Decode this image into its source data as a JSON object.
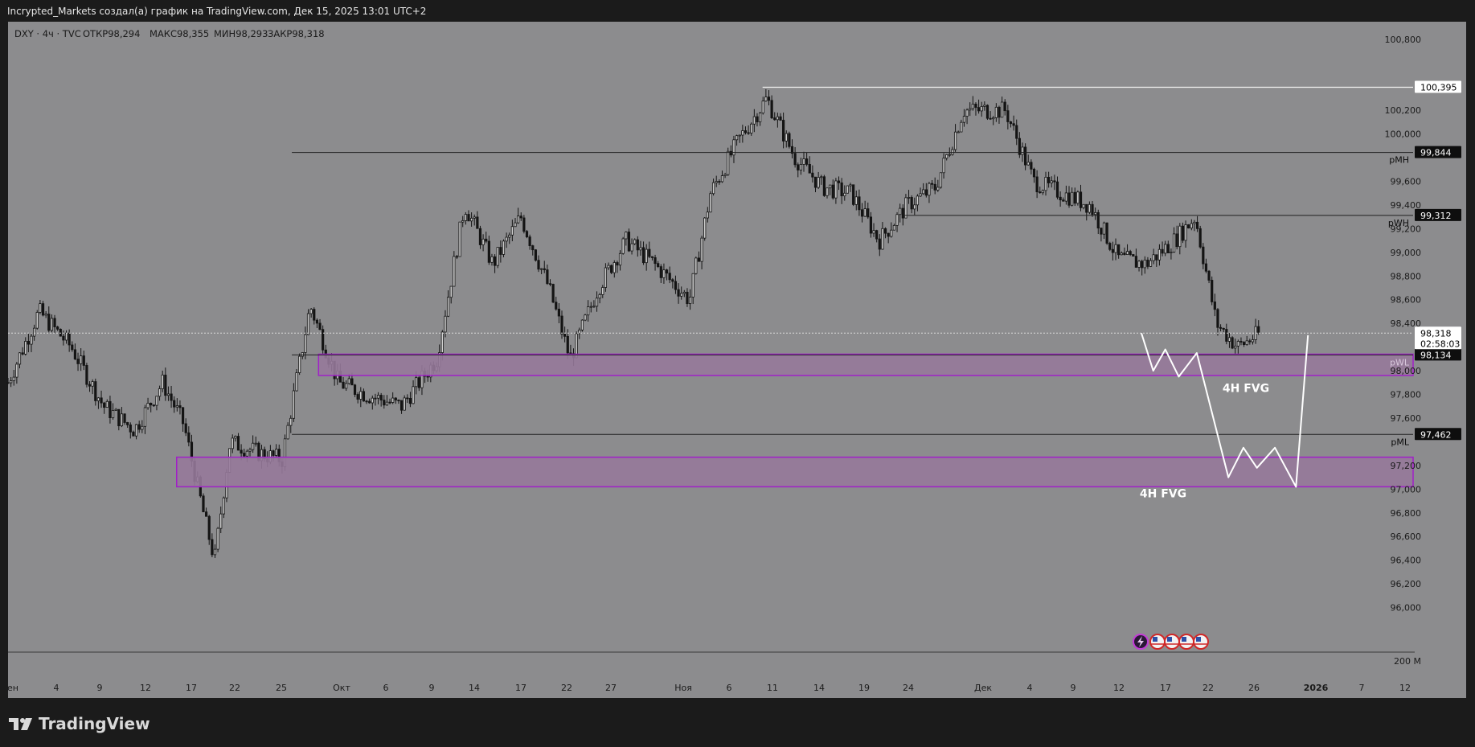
{
  "header": {
    "attribution": "Incrypted_Markets создал(а) график на TradingView.com, Дек 15, 2025 13:01 UTC+2"
  },
  "legend": {
    "symbol": "DXY · 4ч · TVC",
    "open_label": "ОТКР",
    "open": "98,294",
    "high_label": "МАКС",
    "high": "98,355",
    "low_label": "МИН",
    "low": "98,293",
    "close_label": "ЗАКР",
    "close": "98,318"
  },
  "chart_data": {
    "type": "candlestick",
    "ylim": [
      95.8,
      100.86
    ],
    "y_ticks": [
      {
        "value": 100.8,
        "label": "100,800"
      },
      {
        "value": 100.2,
        "label": "100,200"
      },
      {
        "value": 100.0,
        "label": "100,000"
      },
      {
        "value": 99.6,
        "label": "99,600"
      },
      {
        "value": 99.4,
        "label": "99,400"
      },
      {
        "value": 99.2,
        "label": "99,200"
      },
      {
        "value": 99.0,
        "label": "99,000"
      },
      {
        "value": 98.8,
        "label": "98,800"
      },
      {
        "value": 98.6,
        "label": "98,600"
      },
      {
        "value": 98.4,
        "label": "98,400"
      },
      {
        "value": 98.0,
        "label": "98,000"
      },
      {
        "value": 97.8,
        "label": "97,800"
      },
      {
        "value": 97.6,
        "label": "97,600"
      },
      {
        "value": 97.2,
        "label": "97,200"
      },
      {
        "value": 97.0,
        "label": "97,000"
      },
      {
        "value": 96.8,
        "label": "96,800"
      },
      {
        "value": 96.6,
        "label": "96,600"
      },
      {
        "value": 96.4,
        "label": "96,400"
      },
      {
        "value": 96.2,
        "label": "96,200"
      },
      {
        "value": 96.0,
        "label": "96,000"
      }
    ],
    "x_ticks": [
      "ен",
      "4",
      "9",
      "12",
      "17",
      "22",
      "25",
      "Окт",
      "6",
      "9",
      "14",
      "17",
      "22",
      "27",
      "Ноя",
      "6",
      "11",
      "14",
      "19",
      "24",
      "Дек",
      "4",
      "9",
      "12",
      "17",
      "22",
      "26",
      "2026",
      "7",
      "12"
    ],
    "volume_axis_label": "200 M",
    "price_path": [
      [
        0,
        97.9
      ],
      [
        0.022,
        98.5
      ],
      [
        0.045,
        98.2
      ],
      [
        0.068,
        97.7
      ],
      [
        0.09,
        97.5
      ],
      [
        0.11,
        97.9
      ],
      [
        0.125,
        97.55
      ],
      [
        0.14,
        96.75
      ],
      [
        0.147,
        96.4
      ],
      [
        0.158,
        97.4
      ],
      [
        0.18,
        97.3
      ],
      [
        0.195,
        97.25
      ],
      [
        0.215,
        98.55
      ],
      [
        0.235,
        97.9
      ],
      [
        0.255,
        97.8
      ],
      [
        0.28,
        97.7
      ],
      [
        0.305,
        98.1
      ],
      [
        0.325,
        99.4
      ],
      [
        0.345,
        98.9
      ],
      [
        0.365,
        99.3
      ],
      [
        0.385,
        98.7
      ],
      [
        0.4,
        98.1
      ],
      [
        0.42,
        98.7
      ],
      [
        0.44,
        99.1
      ],
      [
        0.46,
        98.9
      ],
      [
        0.485,
        98.6
      ],
      [
        0.5,
        99.5
      ],
      [
        0.52,
        99.95
      ],
      [
        0.54,
        100.3
      ],
      [
        0.56,
        99.8
      ],
      [
        0.58,
        99.55
      ],
      [
        0.6,
        99.5
      ],
      [
        0.62,
        99.1
      ],
      [
        0.64,
        99.4
      ],
      [
        0.66,
        99.55
      ],
      [
        0.68,
        100.2
      ],
      [
        0.71,
        100.2
      ],
      [
        0.73,
        99.6
      ],
      [
        0.75,
        99.5
      ],
      [
        0.77,
        99.4
      ],
      [
        0.79,
        98.95
      ],
      [
        0.81,
        98.9
      ],
      [
        0.83,
        99.1
      ],
      [
        0.845,
        99.3
      ],
      [
        0.86,
        98.4
      ],
      [
        0.875,
        98.2
      ],
      [
        0.89,
        98.31
      ]
    ],
    "levels": [
      {
        "label": "pMH",
        "value": 99.844,
        "tag": "99,844"
      },
      {
        "label": "pWH",
        "value": 99.312,
        "tag": "99,312"
      },
      {
        "label": "pWL",
        "value": 98.134,
        "tag": "98,134"
      },
      {
        "label": "pML",
        "value": 97.462,
        "tag": "97,462"
      }
    ],
    "high_level": {
      "value": 100.395,
      "tag": "100,395"
    },
    "last_price": {
      "value": 98.318,
      "tag": "98,318",
      "countdown": "02:58:03"
    },
    "zones": [
      {
        "label": "4H FVG",
        "top": 98.14,
        "bottom": 97.96
      },
      {
        "label": "4H FVG",
        "top": 97.27,
        "bottom": 97.02
      }
    ],
    "projection": [
      [
        98.318,
        98.0
      ],
      [
        98.0,
        98.18
      ],
      [
        98.18,
        97.95
      ],
      [
        97.95,
        98.15
      ],
      [
        98.15,
        97.1
      ],
      [
        97.1,
        97.35
      ],
      [
        97.35,
        97.18
      ],
      [
        97.18,
        97.35
      ],
      [
        97.35,
        97.02
      ],
      [
        97.02,
        98.3
      ]
    ]
  },
  "colors": {
    "background": "#8c8c8e",
    "frame": "#1b1b1b",
    "candle": "#141414",
    "zone_fill": "#96799a",
    "zone_border": "#a020c8",
    "projection": "#ffffff",
    "level_line": "#202020"
  },
  "icons": [
    "lightning-icon",
    "us-flag-icon",
    "us-flag-icon",
    "us-flag-icon",
    "us-flag-icon"
  ],
  "footer": {
    "brand": "TradingView"
  }
}
